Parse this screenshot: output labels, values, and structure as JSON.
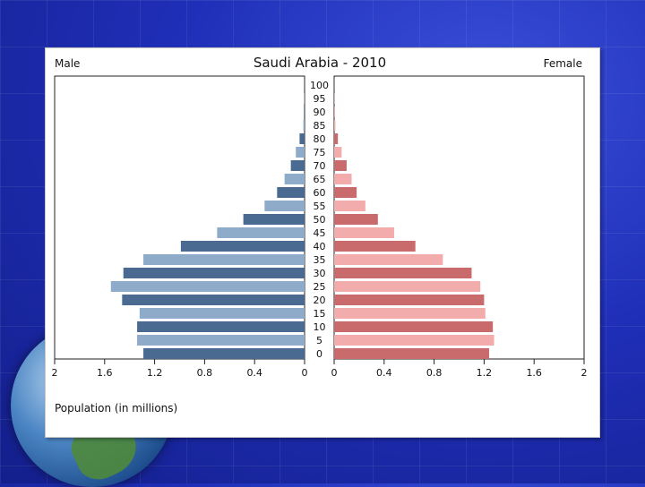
{
  "chart_data": {
    "type": "bar",
    "title": "Saudi Arabia - 2010",
    "left_label": "Male",
    "right_label": "Female",
    "xlabel": "Population (in millions)",
    "xlim": [
      0,
      2
    ],
    "x_ticks": [
      "0",
      "0.4",
      "0.8",
      "1.2",
      "1.6",
      "2"
    ],
    "age_labels": [
      "0",
      "5",
      "10",
      "15",
      "20",
      "25",
      "30",
      "35",
      "40",
      "45",
      "50",
      "55",
      "60",
      "65",
      "70",
      "75",
      "80",
      "85",
      "90",
      "95",
      "100"
    ],
    "series": [
      {
        "name": "Male",
        "values": [
          1.29,
          1.34,
          1.34,
          1.32,
          1.46,
          1.55,
          1.45,
          1.29,
          0.99,
          0.7,
          0.49,
          0.32,
          0.22,
          0.16,
          0.11,
          0.07,
          0.04,
          0.01,
          0.005,
          0.002,
          0.001
        ]
      },
      {
        "name": "Female",
        "values": [
          1.24,
          1.28,
          1.27,
          1.21,
          1.2,
          1.17,
          1.1,
          0.87,
          0.65,
          0.48,
          0.35,
          0.25,
          0.18,
          0.14,
          0.1,
          0.06,
          0.03,
          0.01,
          0.004,
          0.002,
          0.001
        ]
      }
    ],
    "colors": {
      "male_dark": "#4a6a91",
      "male_light": "#8eabc9",
      "female_dark": "#c96a6c",
      "female_light": "#f3acac"
    }
  }
}
